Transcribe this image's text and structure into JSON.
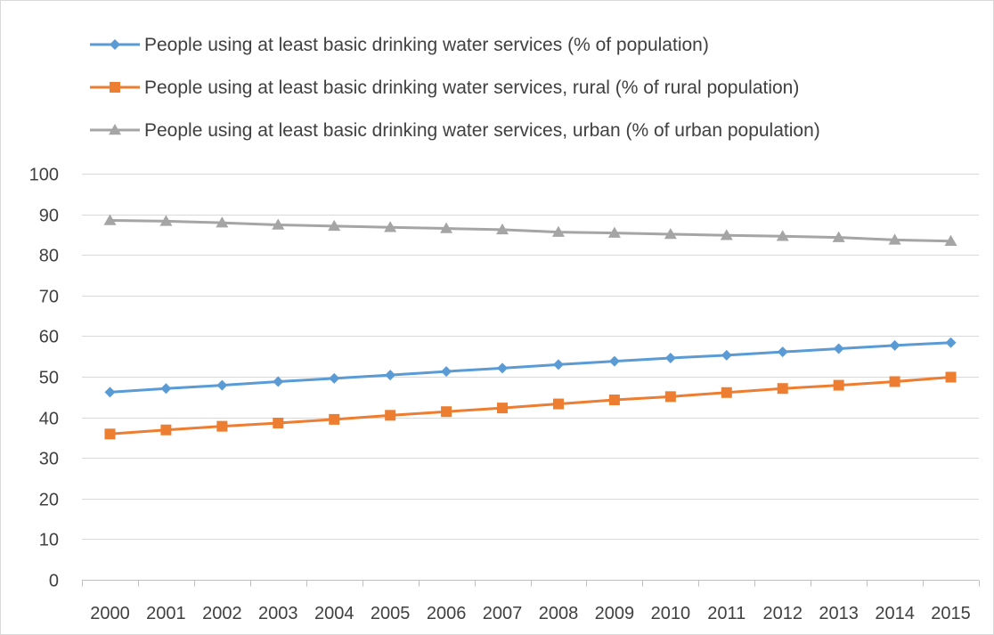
{
  "chart_data": {
    "type": "line",
    "categories": [
      "2000",
      "2001",
      "2002",
      "2003",
      "2004",
      "2005",
      "2006",
      "2007",
      "2008",
      "2009",
      "2010",
      "2011",
      "2012",
      "2013",
      "2014",
      "2015"
    ],
    "ylim": [
      0,
      100
    ],
    "yticks": [
      0,
      10,
      20,
      30,
      40,
      50,
      60,
      70,
      80,
      90,
      100
    ],
    "grid": true,
    "legend_position": "top-left",
    "series": [
      {
        "name": "People using at least basic drinking water services (% of population)",
        "color": "#5b9bd5",
        "marker": "diamond",
        "values": [
          46.2,
          47.1,
          47.9,
          48.8,
          49.6,
          50.4,
          51.3,
          52.1,
          53.0,
          53.8,
          54.6,
          55.3,
          56.1,
          56.9,
          57.7,
          58.4
        ]
      },
      {
        "name": "People using at least basic drinking water services, rural (% of rural population)",
        "color": "#ed7d31",
        "marker": "square",
        "values": [
          35.9,
          36.9,
          37.8,
          38.6,
          39.5,
          40.5,
          41.4,
          42.3,
          43.3,
          44.3,
          45.1,
          46.1,
          47.1,
          47.9,
          48.8,
          49.9
        ]
      },
      {
        "name": "People using at least basic drinking water services, urban (% of urban population)",
        "color": "#a5a5a5",
        "marker": "triangle",
        "values": [
          88.5,
          88.3,
          87.9,
          87.4,
          87.1,
          86.8,
          86.5,
          86.2,
          85.6,
          85.4,
          85.1,
          84.8,
          84.6,
          84.3,
          83.7,
          83.4
        ]
      }
    ]
  }
}
